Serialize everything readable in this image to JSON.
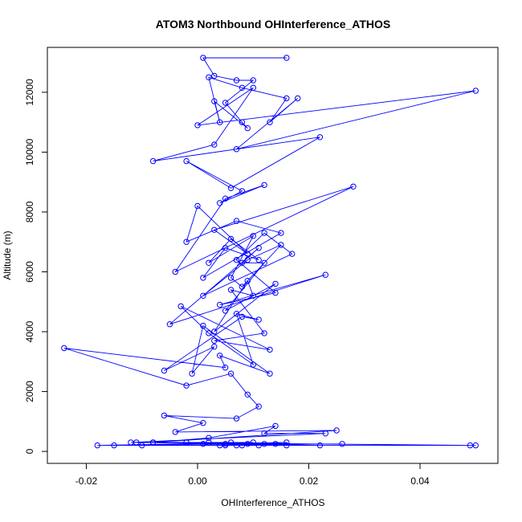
{
  "chart_data": {
    "type": "line",
    "title": "ATOM3 Northbound OHInterference_ATHOS",
    "xlabel": "OHInterference_ATHOS",
    "ylabel": "Altitude (m)",
    "xlim": [
      -0.027,
      0.054
    ],
    "ylim": [
      -400,
      13500
    ],
    "xticks": [
      -0.02,
      0.0,
      0.02,
      0.04
    ],
    "xtick_labels": [
      "-0.02",
      "0.00",
      "0.02",
      "0.04"
    ],
    "yticks": [
      0,
      2000,
      4000,
      6000,
      8000,
      10000,
      12000
    ],
    "ytick_labels": [
      "0",
      "2000",
      "4000",
      "6000",
      "8000",
      "10000",
      "12000"
    ],
    "grid": false,
    "markers": "open-circle",
    "color": "#0000ff",
    "series": [
      {
        "x": [
          0.016,
          0.001,
          0.003,
          0.007,
          0.01,
          0.005,
          0.008,
          0.009,
          0.003,
          0.004,
          0.002,
          0.008,
          0.016,
          0.013,
          0.018,
          0.007,
          0.05,
          0.0,
          0.01,
          0.003,
          -0.008,
          0.022,
          0.006,
          -0.002,
          0.008,
          0.004,
          0.012,
          0.005,
          -0.004,
          0.028,
          0.003,
          0.009,
          0.0,
          -0.002,
          0.007,
          0.015,
          0.001,
          0.005,
          0.011,
          0.006,
          0.002,
          0.01,
          0.006,
          0.008,
          0.015,
          0.009,
          0.001,
          0.017,
          0.012,
          0.007,
          0.014,
          0.004,
          0.023,
          -0.005,
          0.011,
          0.008,
          0.012,
          0.005,
          0.014,
          0.003,
          0.009,
          0.01,
          0.006,
          0.012,
          0.003,
          0.013,
          -0.003,
          0.002,
          0.01,
          0.007,
          0.011,
          0.008,
          -0.006,
          0.003,
          -0.001,
          0.001,
          0.013,
          0.004,
          0.005,
          -0.024,
          -0.002,
          0.006,
          0.009,
          0.011,
          0.007,
          -0.006,
          0.001,
          -0.004,
          0.025,
          -0.008,
          0.002,
          0.014,
          0.012,
          0.023,
          -0.012,
          0.01,
          0.001,
          0.026,
          -0.015,
          0.008,
          0.016,
          -0.018,
          0.05,
          -0.01,
          0.007,
          0.005,
          0.049,
          -0.008,
          0.022,
          -0.011,
          0.014,
          0.009,
          -0.002,
          0.012,
          0.006,
          0.004,
          0.016,
          0.002,
          0.011,
          0.005
        ],
        "y": [
          13150,
          13150,
          12550,
          12400,
          12400,
          11650,
          11000,
          10800,
          11700,
          11000,
          12500,
          12150,
          11800,
          11000,
          11800,
          10100,
          12050,
          10900,
          12150,
          10250,
          9700,
          10500,
          8800,
          9700,
          8700,
          8300,
          8900,
          8450,
          6000,
          8850,
          7400,
          6600,
          8200,
          7000,
          7700,
          7300,
          5800,
          6800,
          6400,
          7100,
          6300,
          7200,
          5800,
          5500,
          6900,
          6400,
          5200,
          6600,
          7300,
          6400,
          5300,
          4900,
          5900,
          4250,
          6800,
          6300,
          6300,
          4700,
          5600,
          4000,
          5700,
          5200,
          5400,
          3950,
          3700,
          3400,
          4850,
          3950,
          2900,
          4600,
          4400,
          4500,
          2700,
          3500,
          2600,
          4200,
          2600,
          3200,
          2800,
          3450,
          2200,
          2600,
          1900,
          1500,
          1100,
          1200,
          950,
          650,
          700,
          300,
          450,
          850,
          600,
          600,
          300,
          300,
          250,
          250,
          200,
          200,
          300,
          200,
          200,
          200,
          200,
          200,
          200,
          300,
          200,
          300,
          250,
          250,
          300,
          250,
          300,
          200,
          200,
          300,
          200,
          250
        ]
      }
    ]
  }
}
